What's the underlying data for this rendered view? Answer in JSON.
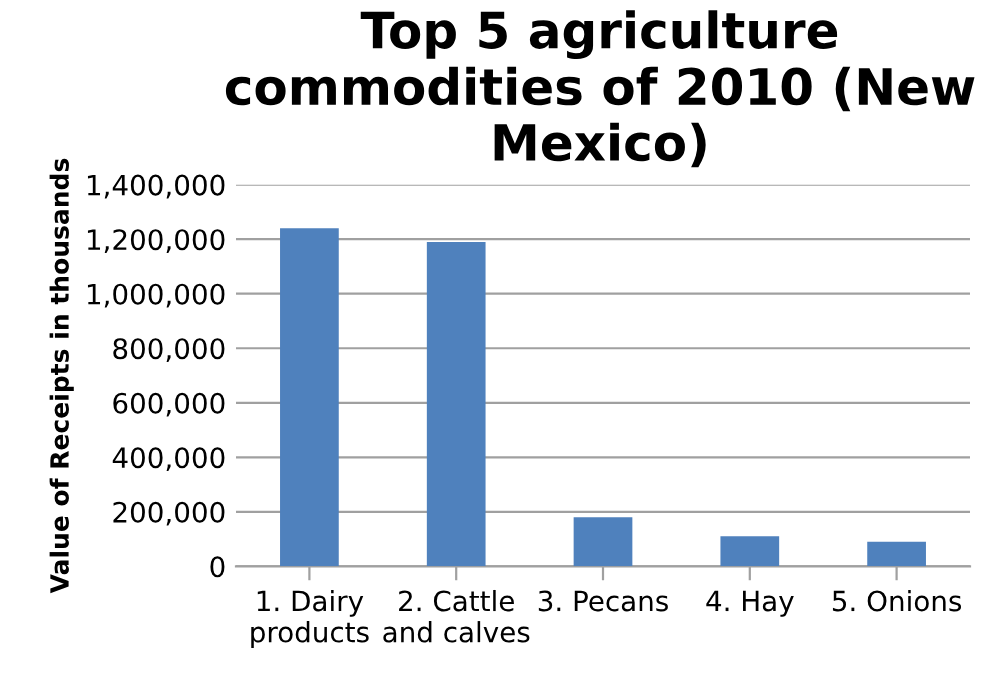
{
  "chart_data": {
    "type": "bar",
    "title": "Top 5 agriculture commodities of 2010 (New Mexico)",
    "ylabel": "Value of Receipts in thousands",
    "categories": [
      "1. Dairy\nproducts",
      "2. Cattle\nand calves",
      "3. Pecans",
      "4. Hay",
      "5. Onions"
    ],
    "values": [
      1240000,
      1190000,
      180000,
      110000,
      90000
    ],
    "color": "#4f81bd",
    "ylim": [
      0,
      1400000
    ],
    "yticks": [
      {
        "value": 0,
        "label": "0"
      },
      {
        "value": 200000,
        "label": "200,000"
      },
      {
        "value": 400000,
        "label": "400,000"
      },
      {
        "value": 600000,
        "label": "600,000"
      },
      {
        "value": 800000,
        "label": "800,000"
      },
      {
        "value": 1000000,
        "label": "1,000,000"
      },
      {
        "value": 1200000,
        "label": "1,200,000"
      },
      {
        "value": 1400000,
        "label": "1,400,000"
      }
    ],
    "grid": "y"
  }
}
